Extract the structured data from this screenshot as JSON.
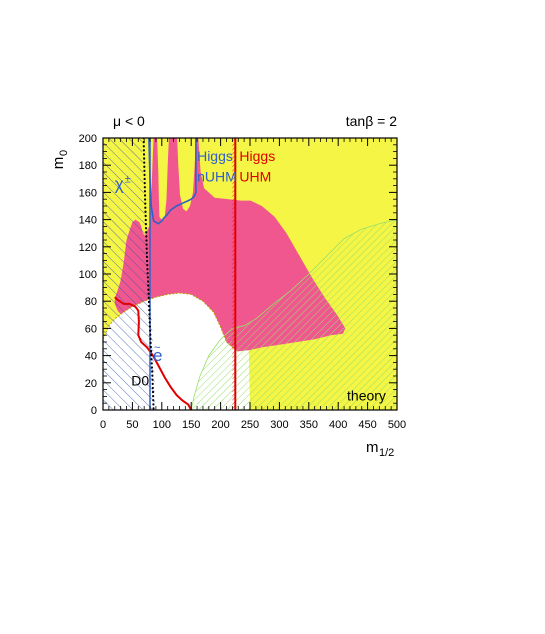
{
  "chart_data": {
    "type": "area",
    "xlabel": "m",
    "xlabel_sub": "1/2",
    "ylabel": "m",
    "ylabel_sub": "0",
    "xlim": [
      0,
      500
    ],
    "ylim": [
      0,
      200
    ],
    "x_ticks": [
      0,
      50,
      100,
      150,
      200,
      250,
      300,
      350,
      400,
      450,
      500
    ],
    "y_ticks": [
      0,
      20,
      40,
      60,
      80,
      100,
      120,
      140,
      160,
      180,
      200
    ],
    "corner_left": "μ < 0",
    "corner_right": "tanβ = 2",
    "colors": {
      "background_region": "#f5f545",
      "pink_region": "#f0578e",
      "theory_hatch": "#98e06a",
      "chargino_hatch": "#3a55b0",
      "uhm_higgs": "#e00000",
      "nuhm_higgs": "#3060c8",
      "electron_line": "#3060c8",
      "d0_line": "#000000"
    },
    "annotations": [
      {
        "key": "higgs_nuhm_1",
        "text": "Higgs",
        "x": 160,
        "y": 183,
        "color": "#3060c8"
      },
      {
        "key": "higgs_nuhm_2",
        "text": "nUHM",
        "x": 160,
        "y": 168,
        "color": "#3060c8"
      },
      {
        "key": "higgs_uhm_1",
        "text": "Higgs",
        "x": 232,
        "y": 183,
        "color": "#e00000"
      },
      {
        "key": "higgs_uhm_2",
        "text": "UHM",
        "x": 232,
        "y": 168,
        "color": "#e00000"
      },
      {
        "key": "d0",
        "text": "D0",
        "x": 48,
        "y": 18,
        "color": "#000000"
      },
      {
        "key": "theory",
        "text": "theory",
        "x": 415,
        "y": 7,
        "color": "#000000"
      }
    ],
    "symbols": [
      {
        "key": "chargino",
        "text": "χ",
        "sup": "±",
        "x": 20,
        "y": 162,
        "color": "#3060c8"
      },
      {
        "key": "electron",
        "text": "e",
        "sup": "~",
        "x": 85,
        "y": 36,
        "color": "#3060c8"
      }
    ],
    "regions": {
      "pink": [
        [
          20,
          82
        ],
        [
          25,
          88
        ],
        [
          30,
          95
        ],
        [
          35,
          108
        ],
        [
          40,
          125
        ],
        [
          45,
          132
        ],
        [
          50,
          138
        ],
        [
          55,
          140
        ],
        [
          62,
          138
        ],
        [
          65,
          135
        ],
        [
          68,
          130
        ],
        [
          72,
          128
        ],
        [
          75,
          132
        ],
        [
          80,
          136
        ],
        [
          82,
          155
        ],
        [
          84,
          180
        ],
        [
          86,
          200
        ],
        [
          92,
          200
        ],
        [
          94,
          175
        ],
        [
          95,
          155
        ],
        [
          96,
          142
        ],
        [
          100,
          140
        ],
        [
          105,
          142
        ],
        [
          108,
          155
        ],
        [
          110,
          180
        ],
        [
          112,
          200
        ],
        [
          126,
          200
        ],
        [
          128,
          180
        ],
        [
          131,
          158
        ],
        [
          136,
          148
        ],
        [
          142,
          146
        ],
        [
          148,
          150
        ],
        [
          153,
          160
        ],
        [
          156,
          180
        ],
        [
          158,
          200
        ],
        [
          162,
          200
        ],
        [
          166,
          175
        ],
        [
          172,
          163
        ],
        [
          190,
          156
        ],
        [
          214,
          155
        ],
        [
          235,
          154
        ],
        [
          251,
          154
        ],
        [
          270,
          150
        ],
        [
          292,
          142
        ],
        [
          312,
          130
        ],
        [
          332,
          115
        ],
        [
          356,
          97
        ],
        [
          378,
          82
        ],
        [
          398,
          70
        ],
        [
          412,
          60
        ],
        [
          408,
          56
        ],
        [
          388,
          55
        ],
        [
          360,
          52
        ],
        [
          330,
          50
        ],
        [
          300,
          48
        ],
        [
          270,
          46
        ],
        [
          248,
          44
        ],
        [
          228,
          43
        ],
        [
          210,
          50
        ],
        [
          199,
          62
        ],
        [
          188,
          72
        ],
        [
          170,
          80
        ],
        [
          150,
          85
        ],
        [
          130,
          86
        ],
        [
          110,
          85
        ],
        [
          90,
          80
        ],
        [
          70,
          73
        ],
        [
          50,
          65
        ],
        [
          35,
          68
        ],
        [
          25,
          73
        ],
        [
          20,
          78
        ]
      ],
      "white": [
        [
          0,
          0
        ],
        [
          0,
          52
        ],
        [
          5,
          57
        ],
        [
          10,
          62
        ],
        [
          20,
          67
        ],
        [
          35,
          72
        ],
        [
          50,
          76
        ],
        [
          70,
          80
        ],
        [
          90,
          83
        ],
        [
          110,
          85
        ],
        [
          130,
          86
        ],
        [
          150,
          85
        ],
        [
          170,
          80
        ],
        [
          188,
          72
        ],
        [
          199,
          62
        ],
        [
          210,
          50
        ],
        [
          228,
          43
        ],
        [
          248,
          44
        ],
        [
          250,
          0
        ]
      ],
      "theory": [
        [
          150,
          0
        ],
        [
          155,
          10
        ],
        [
          165,
          25
        ],
        [
          180,
          40
        ],
        [
          200,
          52
        ],
        [
          220,
          60
        ],
        [
          240,
          62
        ],
        [
          260,
          67
        ],
        [
          290,
          78
        ],
        [
          320,
          88
        ],
        [
          350,
          100
        ],
        [
          380,
          113
        ],
        [
          410,
          126
        ],
        [
          440,
          133
        ],
        [
          470,
          137
        ],
        [
          500,
          140
        ],
        [
          500,
          0
        ]
      ],
      "chargino": [
        [
          0,
          0
        ],
        [
          0,
          200
        ],
        [
          66,
          200
        ],
        [
          70,
          150
        ],
        [
          74,
          120
        ],
        [
          78,
          95
        ],
        [
          82,
          75
        ],
        [
          85,
          50
        ],
        [
          87,
          30
        ],
        [
          88,
          15
        ],
        [
          89,
          0
        ]
      ],
      "uhm_line": [
        [
          225,
          0
        ],
        [
          225,
          200
        ]
      ],
      "uhm_contour": [
        [
          20,
          83
        ],
        [
          25,
          81
        ],
        [
          35,
          78
        ],
        [
          45,
          78
        ],
        [
          55,
          76
        ],
        [
          60,
          73
        ],
        [
          61,
          65
        ],
        [
          60,
          55
        ],
        [
          65,
          50
        ],
        [
          75,
          46
        ],
        [
          85,
          40
        ],
        [
          95,
          32
        ],
        [
          105,
          24
        ],
        [
          115,
          17
        ],
        [
          125,
          11
        ],
        [
          135,
          7
        ],
        [
          145,
          4
        ],
        [
          150,
          0
        ]
      ],
      "nuhm_contour": [
        [
          78,
          200
        ],
        [
          80,
          170
        ],
        [
          82,
          150
        ],
        [
          86,
          139
        ],
        [
          94,
          137
        ],
        [
          100,
          139
        ],
        [
          103,
          141
        ],
        [
          108,
          143
        ],
        [
          115,
          147
        ],
        [
          125,
          150
        ],
        [
          135,
          152
        ],
        [
          145,
          154
        ],
        [
          150,
          155
        ],
        [
          155,
          157
        ],
        [
          158,
          160
        ],
        [
          158,
          190
        ],
        [
          158,
          200
        ]
      ],
      "electron_line": [
        [
          80,
          0
        ],
        [
          80,
          200
        ]
      ],
      "d0_line": [
        [
          69,
          200
        ],
        [
          72,
          150
        ],
        [
          75,
          110
        ],
        [
          78,
          80
        ],
        [
          81,
          50
        ],
        [
          84,
          25
        ],
        [
          86,
          0
        ]
      ],
      "boundary_yellow_white": [
        [
          0,
          52
        ],
        [
          5,
          57
        ],
        [
          10,
          62
        ],
        [
          20,
          67
        ],
        [
          35,
          72
        ],
        [
          50,
          76
        ],
        [
          70,
          80
        ],
        [
          90,
          83
        ],
        [
          110,
          85
        ],
        [
          130,
          86
        ],
        [
          150,
          85
        ],
        [
          170,
          80
        ],
        [
          188,
          72
        ],
        [
          199,
          62
        ],
        [
          210,
          50
        ],
        [
          228,
          43
        ]
      ]
    }
  }
}
